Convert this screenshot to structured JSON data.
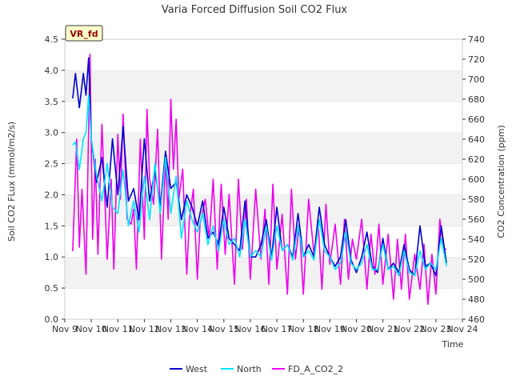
{
  "chart_data": {
    "type": "line",
    "title": "Varia Forced Diffusion Soil CO2 Flux",
    "xlabel": "Time",
    "ylabel": "Soil CO2 FLux (mmol/m2/s)",
    "y2label": "CO2 Concentration (ppm)",
    "badge": "VR_fd",
    "x_ticks": [
      "Nov 9",
      "Nov 10",
      "Nov 11",
      "Nov 12",
      "Nov 13",
      "Nov 14",
      "Nov 15",
      "Nov 16",
      "Nov 17",
      "Nov 18",
      "Nov 19",
      "Nov 20",
      "Nov 21",
      "Nov 22",
      "Nov 23",
      "Nov 24"
    ],
    "x_range_days": [
      9,
      24
    ],
    "ylim": [
      0.0,
      4.5
    ],
    "y_ticks": [
      "0.0",
      "0.5",
      "1.0",
      "1.5",
      "2.0",
      "2.5",
      "3.0",
      "3.5",
      "4.0",
      "4.5"
    ],
    "y2lim": [
      460,
      740
    ],
    "y2_ticks": [
      "460",
      "480",
      "500",
      "520",
      "540",
      "560",
      "580",
      "600",
      "620",
      "640",
      "660",
      "680",
      "700",
      "720",
      "740"
    ],
    "grid": "horizontal bands",
    "legend_position": "bottom",
    "series": [
      {
        "name": "West",
        "axis": "left",
        "color": "#0000cc",
        "x": [
          9.3,
          9.4,
          9.55,
          9.7,
          9.8,
          9.9,
          10.0,
          10.2,
          10.4,
          10.6,
          10.8,
          11.0,
          11.2,
          11.4,
          11.6,
          11.8,
          12.0,
          12.2,
          12.4,
          12.6,
          12.8,
          13.0,
          13.2,
          13.4,
          13.6,
          13.8,
          14.0,
          14.2,
          14.4,
          14.6,
          14.8,
          15.0,
          15.2,
          15.4,
          15.6,
          15.8,
          16.0,
          16.2,
          16.4,
          16.6,
          16.8,
          17.0,
          17.2,
          17.4,
          17.6,
          17.8,
          18.0,
          18.2,
          18.4,
          18.6,
          18.8,
          19.0,
          19.2,
          19.4,
          19.6,
          19.8,
          20.0,
          20.2,
          20.4,
          20.6,
          20.8,
          21.0,
          21.2,
          21.4,
          21.6,
          21.8,
          22.0,
          22.2,
          22.4,
          22.6,
          22.8,
          23.0,
          23.2,
          23.4
        ],
        "y": [
          3.55,
          3.95,
          3.4,
          3.95,
          3.6,
          4.2,
          2.9,
          2.2,
          2.6,
          1.8,
          2.9,
          2.0,
          3.1,
          1.9,
          2.1,
          1.6,
          2.9,
          1.9,
          2.4,
          1.8,
          2.7,
          2.1,
          2.2,
          1.6,
          2.0,
          1.8,
          1.5,
          1.9,
          1.3,
          1.4,
          1.2,
          1.8,
          1.3,
          1.2,
          1.1,
          1.9,
          1.0,
          1.0,
          1.2,
          1.6,
          1.0,
          1.8,
          1.1,
          1.2,
          1.0,
          1.7,
          1.0,
          1.2,
          1.0,
          1.8,
          1.2,
          1.0,
          0.85,
          1.0,
          1.6,
          0.95,
          0.75,
          1.0,
          1.4,
          0.85,
          0.75,
          1.3,
          0.8,
          0.9,
          0.75,
          1.2,
          0.8,
          0.7,
          1.5,
          0.85,
          0.9,
          0.7,
          1.5,
          0.9
        ]
      },
      {
        "name": "North",
        "axis": "left",
        "color": "#00e5ff",
        "x": [
          9.3,
          9.4,
          9.55,
          9.7,
          9.8,
          9.9,
          10.0,
          10.2,
          10.4,
          10.6,
          10.8,
          11.0,
          11.2,
          11.4,
          11.6,
          11.8,
          12.0,
          12.2,
          12.4,
          12.6,
          12.8,
          13.0,
          13.2,
          13.4,
          13.6,
          13.8,
          14.0,
          14.2,
          14.4,
          14.6,
          14.8,
          15.0,
          15.2,
          15.4,
          15.6,
          15.8,
          16.0,
          16.2,
          16.4,
          16.6,
          16.8,
          17.0,
          17.2,
          17.4,
          17.6,
          17.8,
          18.0,
          18.2,
          18.4,
          18.6,
          18.8,
          19.0,
          19.2,
          19.4,
          19.6,
          19.8,
          20.0,
          20.2,
          20.4,
          20.6,
          20.8,
          21.0,
          21.2,
          21.4,
          21.6,
          21.8,
          22.0,
          22.2,
          22.4,
          22.6,
          22.8,
          23.0,
          23.2,
          23.4
        ],
        "y": [
          2.8,
          2.85,
          2.4,
          2.9,
          3.0,
          3.6,
          2.9,
          2.3,
          1.9,
          2.5,
          1.8,
          1.7,
          2.4,
          1.5,
          1.9,
          1.4,
          2.3,
          1.6,
          2.5,
          1.7,
          2.6,
          1.7,
          2.3,
          1.3,
          1.9,
          1.6,
          1.4,
          1.7,
          1.2,
          1.5,
          1.1,
          1.6,
          1.2,
          1.3,
          1.0,
          1.6,
          1.0,
          1.1,
          1.0,
          1.5,
          0.95,
          1.5,
          1.1,
          1.2,
          0.95,
          1.5,
          1.0,
          1.1,
          0.95,
          1.6,
          1.1,
          1.0,
          0.8,
          0.9,
          1.4,
          0.9,
          0.8,
          0.9,
          1.2,
          0.8,
          0.8,
          1.2,
          0.8,
          0.85,
          0.7,
          1.1,
          0.75,
          0.7,
          1.1,
          0.8,
          0.9,
          0.8,
          1.3,
          0.85
        ]
      },
      {
        "name": "FD_A_CO2_2",
        "axis": "right",
        "color": "#ee00ee",
        "x": [
          9.3,
          9.45,
          9.55,
          9.65,
          9.8,
          9.95,
          10.05,
          10.15,
          10.25,
          10.4,
          10.6,
          10.75,
          10.85,
          11.0,
          11.1,
          11.2,
          11.35,
          11.5,
          11.6,
          11.7,
          11.85,
          12.0,
          12.1,
          12.2,
          12.35,
          12.5,
          12.65,
          12.8,
          12.9,
          13.0,
          13.1,
          13.2,
          13.3,
          13.45,
          13.6,
          13.7,
          13.85,
          14.0,
          14.1,
          14.3,
          14.45,
          14.6,
          14.75,
          14.9,
          15.05,
          15.2,
          15.4,
          15.55,
          15.7,
          15.85,
          16.0,
          16.2,
          16.4,
          16.55,
          16.7,
          16.85,
          17.0,
          17.2,
          17.4,
          17.55,
          17.7,
          17.85,
          18.0,
          18.2,
          18.4,
          18.55,
          18.7,
          18.85,
          19.0,
          19.2,
          19.4,
          19.55,
          19.7,
          19.85,
          20.0,
          20.2,
          20.4,
          20.55,
          20.7,
          20.85,
          21.0,
          21.2,
          21.4,
          21.55,
          21.7,
          21.85,
          22.0,
          22.2,
          22.4,
          22.55,
          22.7,
          22.85,
          23.0,
          23.15,
          23.3,
          23.4
        ],
        "y": [
          528,
          640,
          532,
          590,
          505,
          725,
          540,
          620,
          525,
          655,
          520,
          600,
          510,
          645,
          580,
          665,
          560,
          555,
          570,
          510,
          640,
          540,
          670,
          600,
          575,
          650,
          520,
          620,
          560,
          680,
          610,
          660,
          580,
          610,
          505,
          560,
          590,
          500,
          555,
          580,
          540,
          600,
          510,
          595,
          525,
          585,
          495,
          600,
          530,
          580,
          500,
          590,
          520,
          570,
          495,
          595,
          510,
          565,
          485,
          590,
          520,
          555,
          485,
          580,
          525,
          560,
          490,
          575,
          515,
          555,
          495,
          560,
          500,
          540,
          520,
          560,
          490,
          545,
          505,
          555,
          495,
          545,
          480,
          540,
          490,
          545,
          480,
          525,
          490,
          535,
          475,
          525,
          485,
          560,
          530,
          530
        ]
      }
    ]
  }
}
